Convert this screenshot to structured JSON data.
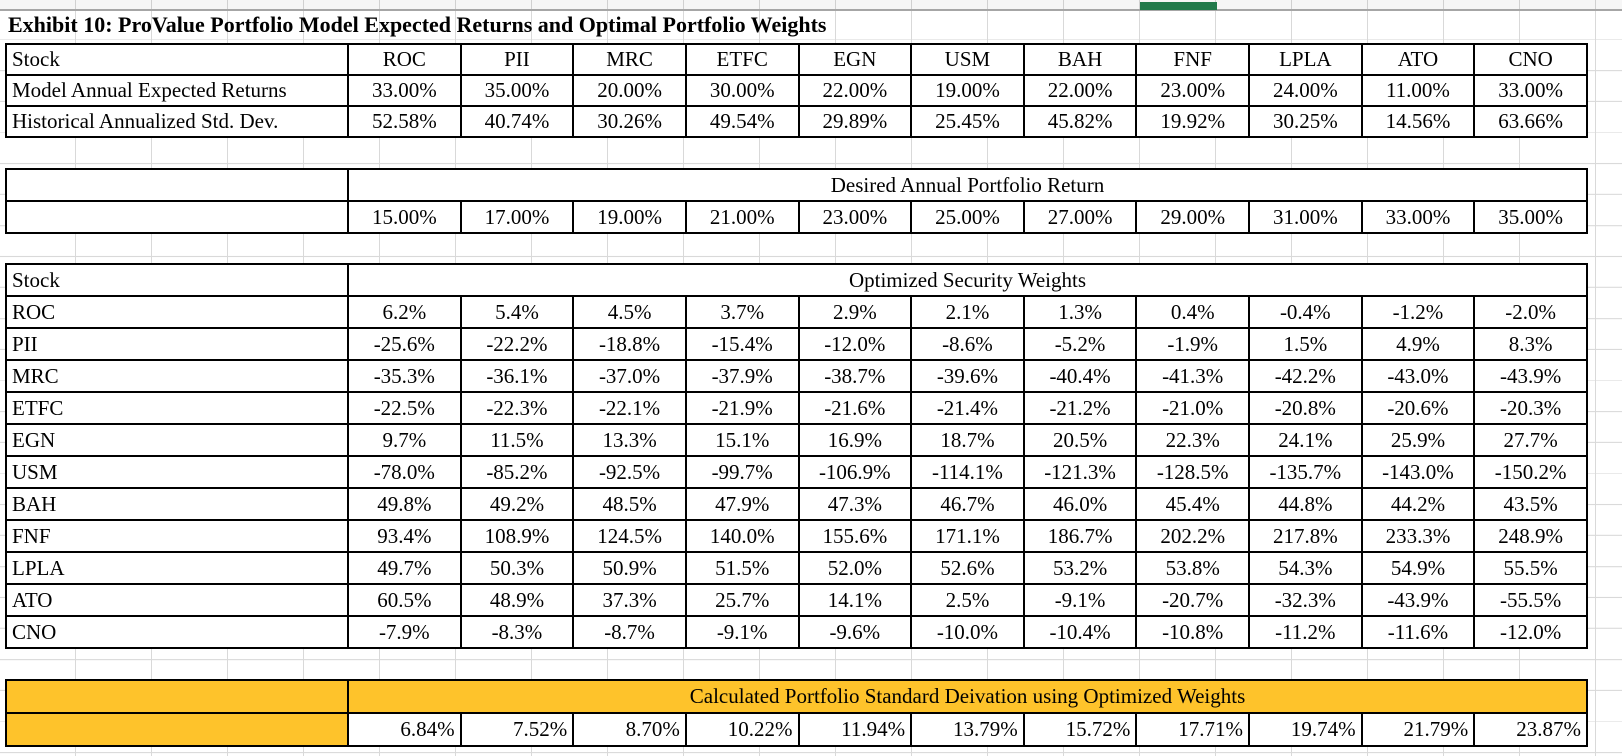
{
  "title": "Exhibit 10: ProValue Portfolio Model Expected Returns and Optimal Portfolio Weights",
  "colors": {
    "highlight_orange": "#FEC32B",
    "selection_green": "#227A4B",
    "gridline_gray": "#D9D9D9",
    "table_border": "#000000"
  },
  "expected_returns_table": {
    "stock_header": "Stock",
    "tickers": [
      "ROC",
      "PII",
      "MRC",
      "ETFC",
      "EGN",
      "USM",
      "BAH",
      "FNF",
      "LPLA",
      "ATO",
      "CNO"
    ],
    "rows": [
      {
        "label": "Model Annual Expected Returns",
        "values": [
          "33.00%",
          "35.00%",
          "20.00%",
          "30.00%",
          "22.00%",
          "19.00%",
          "22.00%",
          "23.00%",
          "24.00%",
          "11.00%",
          "33.00%"
        ]
      },
      {
        "label": "Historical Annualized Std. Dev.",
        "values": [
          "52.58%",
          "40.74%",
          "30.26%",
          "49.54%",
          "29.89%",
          "25.45%",
          "45.82%",
          "19.92%",
          "30.25%",
          "14.56%",
          "63.66%"
        ]
      }
    ]
  },
  "desired_return_table": {
    "header": "Desired Annual Portfolio Return",
    "values": [
      "15.00%",
      "17.00%",
      "19.00%",
      "21.00%",
      "23.00%",
      "25.00%",
      "27.00%",
      "29.00%",
      "31.00%",
      "33.00%",
      "35.00%"
    ]
  },
  "weights_table": {
    "stock_header": "Stock",
    "header": "Optimized Security Weights",
    "rows": [
      {
        "label": "ROC",
        "values": [
          "6.2%",
          "5.4%",
          "4.5%",
          "3.7%",
          "2.9%",
          "2.1%",
          "1.3%",
          "0.4%",
          "-0.4%",
          "-1.2%",
          "-2.0%"
        ]
      },
      {
        "label": "PII",
        "values": [
          "-25.6%",
          "-22.2%",
          "-18.8%",
          "-15.4%",
          "-12.0%",
          "-8.6%",
          "-5.2%",
          "-1.9%",
          "1.5%",
          "4.9%",
          "8.3%"
        ]
      },
      {
        "label": "MRC",
        "values": [
          "-35.3%",
          "-36.1%",
          "-37.0%",
          "-37.9%",
          "-38.7%",
          "-39.6%",
          "-40.4%",
          "-41.3%",
          "-42.2%",
          "-43.0%",
          "-43.9%"
        ]
      },
      {
        "label": "ETFC",
        "values": [
          "-22.5%",
          "-22.3%",
          "-22.1%",
          "-21.9%",
          "-21.6%",
          "-21.4%",
          "-21.2%",
          "-21.0%",
          "-20.8%",
          "-20.6%",
          "-20.3%"
        ]
      },
      {
        "label": "EGN",
        "values": [
          "9.7%",
          "11.5%",
          "13.3%",
          "15.1%",
          "16.9%",
          "18.7%",
          "20.5%",
          "22.3%",
          "24.1%",
          "25.9%",
          "27.7%"
        ]
      },
      {
        "label": "USM",
        "values": [
          "-78.0%",
          "-85.2%",
          "-92.5%",
          "-99.7%",
          "-106.9%",
          "-114.1%",
          "-121.3%",
          "-128.5%",
          "-135.7%",
          "-143.0%",
          "-150.2%"
        ]
      },
      {
        "label": "BAH",
        "values": [
          "49.8%",
          "49.2%",
          "48.5%",
          "47.9%",
          "47.3%",
          "46.7%",
          "46.0%",
          "45.4%",
          "44.8%",
          "44.2%",
          "43.5%"
        ]
      },
      {
        "label": "FNF",
        "values": [
          "93.4%",
          "108.9%",
          "124.5%",
          "140.0%",
          "155.6%",
          "171.1%",
          "186.7%",
          "202.2%",
          "217.8%",
          "233.3%",
          "248.9%"
        ]
      },
      {
        "label": "LPLA",
        "values": [
          "49.7%",
          "50.3%",
          "50.9%",
          "51.5%",
          "52.0%",
          "52.6%",
          "53.2%",
          "53.8%",
          "54.3%",
          "54.9%",
          "55.5%"
        ]
      },
      {
        "label": "ATO",
        "values": [
          "60.5%",
          "48.9%",
          "37.3%",
          "25.7%",
          "14.1%",
          "2.5%",
          "-9.1%",
          "-20.7%",
          "-32.3%",
          "-43.9%",
          "-55.5%"
        ]
      },
      {
        "label": "CNO",
        "values": [
          "-7.9%",
          "-8.3%",
          "-8.7%",
          "-9.1%",
          "-9.6%",
          "-10.0%",
          "-10.4%",
          "-10.8%",
          "-11.2%",
          "-11.6%",
          "-12.0%"
        ]
      }
    ]
  },
  "stddev_table": {
    "header": "Calculated Portfolio Standard Deivation using Optimized Weights",
    "values": [
      "6.84%",
      "7.52%",
      "8.70%",
      "10.22%",
      "11.94%",
      "13.79%",
      "15.72%",
      "17.71%",
      "19.74%",
      "21.79%",
      "23.87%"
    ]
  }
}
